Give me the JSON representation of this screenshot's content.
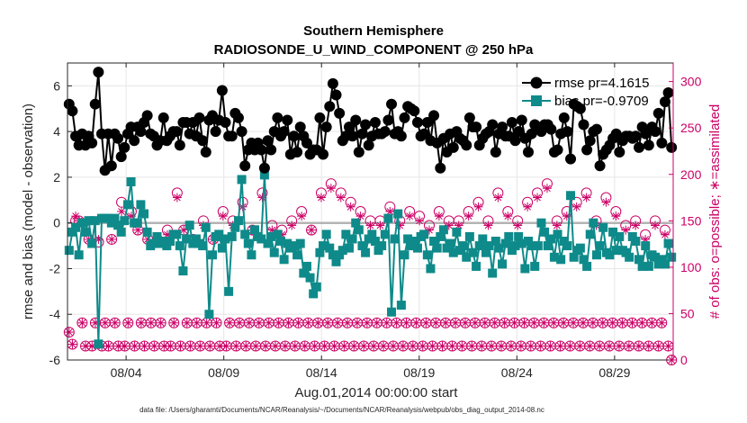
{
  "chart_data": {
    "type": "line",
    "title_line1": "Southern Hemisphere",
    "title_line2": "RADIOSONDE_U_WIND_COMPONENT @ 250 hPa",
    "xlabel": "Aug.01,2014 00:00:00 start",
    "ylabel_left": "rmse and bias (model - observation)",
    "ylabel_right": "# of obs: o=possible; ∗=assimilated",
    "ylim_left": [
      -6,
      7
    ],
    "ylim_right": [
      0,
      320
    ],
    "xlim_days": [
      1,
      32
    ],
    "x_ticks": [
      {
        "day": 4,
        "label": "08/04"
      },
      {
        "day": 9,
        "label": "08/09"
      },
      {
        "day": 14,
        "label": "08/14"
      },
      {
        "day": 19,
        "label": "08/19"
      },
      {
        "day": 24,
        "label": "08/24"
      },
      {
        "day": 29,
        "label": "08/29"
      }
    ],
    "y_ticks_left": [
      "-6",
      "-4",
      "-2",
      "0",
      "2",
      "4",
      "6"
    ],
    "y_ticks_left_values": [
      -6,
      -4,
      -2,
      0,
      2,
      4,
      6
    ],
    "y_ticks_right": [
      "0",
      "50",
      "100",
      "150",
      "200",
      "250",
      "300"
    ],
    "y_ticks_right_values": [
      0,
      50,
      100,
      150,
      200,
      250,
      300
    ],
    "footnote": "data file: /Users/gharamti/Documents/NCAR/Reanalysis/~/Documents/NCAR/Reanalysis/webpub/obs_diag_output_2014-08.nc",
    "colors": {
      "rmse": "#000000",
      "bias": "#0f8a8a",
      "obs": "#cc0066",
      "zero_line": "#b4b4b4"
    },
    "series": [
      {
        "name": "rmse",
        "legend": "rmse pr=4.1615",
        "values": [
          5.2,
          4.9,
          3.8,
          3.4,
          3.9,
          3.4,
          3.8,
          3.5,
          5.2,
          6.6,
          3.9,
          2.3,
          3.9,
          2.5,
          3.9,
          3.7,
          2.9,
          3.3,
          3.9,
          4.2,
          3.6,
          4.2,
          4.0,
          4.4,
          4.7,
          3.9,
          3.8,
          3.4,
          3.6,
          4.6,
          3.6,
          3.8,
          4.0,
          4.0,
          3.4,
          4.4,
          4.4,
          3.9,
          4.4,
          3.8,
          4.6,
          3.6,
          3.1,
          4.5,
          4.7,
          4.0,
          4.5,
          5.8,
          4.4,
          3.8,
          3.8,
          4.8,
          4.6,
          4.0,
          2.5,
          3.2,
          3.5,
          3.2,
          3.5,
          3.2,
          2.4,
          3.6,
          3.2,
          4.0,
          4.6,
          3.8,
          4.0,
          4.5,
          3.0,
          3.8,
          3.1,
          4.2,
          3.8,
          3.5,
          3.0,
          3.2,
          3.2,
          4.6,
          3.0,
          4.2,
          5.1,
          6.1,
          5.6,
          4.8,
          3.6,
          3.8,
          4.2,
          3.8,
          4.5,
          3.1,
          3.9,
          4.3,
          3.4,
          3.8,
          4.4,
          3.9,
          3.9,
          4.0,
          4.5,
          5.2,
          3.9,
          4.0,
          3.8,
          4.6,
          5.1,
          5.0,
          4.9,
          4.4,
          3.8,
          3.9,
          4.4,
          3.6,
          4.7,
          3.5,
          2.4,
          3.7,
          3.1,
          3.9,
          3.3,
          4.0,
          3.7,
          3.6,
          3.4,
          4.6,
          4.2,
          4.2,
          3.4,
          3.7,
          3.9,
          4.0,
          4.3,
          3.1,
          3.9,
          4.2,
          3.8,
          3.8,
          4.4,
          3.6,
          4.0,
          4.5,
          3.7,
          3.1,
          3.9,
          4.3,
          4.2,
          4.0,
          4.3,
          4.3,
          4.1,
          3.1,
          3.2,
          3.9,
          4.6,
          4.0,
          2.8,
          5.2,
          5.1,
          5.0,
          4.3,
          3.2,
          3.6,
          4.0,
          4.1,
          2.5,
          3.0,
          3.2,
          3.4,
          3.7,
          3.9,
          3.1,
          3.6,
          3.8,
          3.8,
          3.7,
          3.8,
          3.3,
          4.2,
          3.9,
          3.4,
          4.2,
          4.0,
          4.8,
          3.5,
          5.3,
          5.7,
          3.3
        ]
      },
      {
        "name": "bias",
        "legend": "bias pr=-0.9709",
        "values": [
          -1.2,
          -0.4,
          -0.2,
          -1.4,
          0.0,
          -0.4,
          0.1,
          -0.9,
          0.1,
          -5.3,
          0.2,
          0.2,
          0.2,
          0.0,
          0.2,
          -0.1,
          -0.4,
          0.1,
          0.8,
          1.8,
          0.0,
          0.0,
          0.8,
          0.4,
          -0.4,
          -1.0,
          -0.9,
          -0.6,
          -0.9,
          -0.8,
          -1.0,
          -0.8,
          -0.5,
          -0.5,
          -1.0,
          -2.1,
          -0.7,
          -0.1,
          -0.9,
          -0.7,
          -0.9,
          -1.0,
          -0.2,
          -4.0,
          -1.4,
          -0.6,
          -0.5,
          -1.1,
          -0.7,
          -3.0,
          -0.6,
          -0.2,
          0.1,
          1.9,
          -0.5,
          -0.9,
          -1.4,
          -0.3,
          -0.6,
          -0.7,
          2.1,
          -0.9,
          -0.6,
          -1.3,
          -0.5,
          -0.8,
          -1.6,
          -0.9,
          -1.1,
          -1.0,
          -1.4,
          -0.9,
          -2.2,
          -1.9,
          -2.4,
          -3.1,
          -2.8,
          -1.3,
          -1.0,
          -0.5,
          -1.1,
          -1.4,
          -1.7,
          -1.4,
          -1.2,
          -0.5,
          -1.1,
          -0.7,
          0.0,
          -0.3,
          -1.0,
          -1.3,
          -0.7,
          -0.5,
          -0.8,
          -1.2,
          -1.0,
          -0.5,
          0.2,
          -3.9,
          -0.7,
          0.4,
          -3.6,
          -1.4,
          -0.7,
          -1.0,
          -0.8,
          -1.1,
          -0.6,
          -0.5,
          -1.4,
          -2.0,
          -0.8,
          -1.1,
          -0.6,
          -0.3,
          -1.1,
          -0.9,
          -1.3,
          -0.4,
          -1.2,
          -1.0,
          -1.5,
          -0.6,
          -1.3,
          -1.9,
          -1.0,
          -0.7,
          -1.3,
          -1.0,
          -2.2,
          -0.8,
          -1.1,
          -1.8,
          -0.9,
          -0.6,
          -1.2,
          -1.0,
          -0.6,
          -0.9,
          -2.0,
          -0.8,
          -1.0,
          -1.9,
          -1.0,
          0.0,
          -0.4,
          -1.0,
          -0.7,
          -1.5,
          -0.5,
          -1.6,
          -0.8,
          -1.0,
          1.2,
          -1.5,
          -1.2,
          -1.1,
          -1.6,
          -1.9,
          -0.5,
          0.0,
          -1.4,
          -1.0,
          -0.2,
          -1.3,
          -1.4,
          -0.4,
          -1.2,
          -0.6,
          -1.2,
          -1.3,
          -1.5,
          -0.6,
          -0.8,
          -1.6,
          -1.9,
          -1.0,
          -1.9,
          -1.4,
          -1.5,
          -1.8,
          -1.6,
          -1.8,
          -0.9,
          -1.5
        ]
      },
      {
        "name": "possible",
        "values": [
          30,
          17,
          150,
          150,
          40,
          15,
          130,
          15,
          40,
          127,
          15,
          40,
          15,
          130,
          40,
          15,
          170,
          15,
          40,
          160,
          15,
          140,
          40,
          15,
          130,
          40,
          15,
          130,
          40,
          15,
          140,
          15,
          40,
          180,
          15,
          140,
          40,
          15,
          130,
          40,
          15,
          150,
          40,
          15,
          130,
          40,
          15,
          160,
          15,
          40,
          150,
          15,
          40,
          170,
          15,
          40,
          140,
          15,
          40,
          180,
          15,
          40,
          145,
          15,
          40,
          140,
          15,
          40,
          150,
          15,
          40,
          160,
          15,
          40,
          140,
          15,
          40,
          180,
          15,
          40,
          190,
          15,
          40,
          180,
          15,
          40,
          170,
          15,
          40,
          160,
          15,
          40,
          150,
          15,
          40,
          150,
          15,
          40,
          165,
          15,
          40,
          150,
          15,
          40,
          160,
          15,
          40,
          155,
          15,
          40,
          145,
          15,
          40,
          160,
          15,
          40,
          150,
          15,
          40,
          150,
          15,
          40,
          160,
          15,
          40,
          170,
          15,
          40,
          150,
          15,
          40,
          180,
          15,
          40,
          160,
          15,
          40,
          150,
          15,
          40,
          170,
          15,
          40,
          180,
          15,
          40,
          190,
          15,
          40,
          150,
          15,
          40,
          160,
          15,
          40,
          170,
          15,
          40,
          180,
          15,
          40,
          150,
          15,
          40,
          175,
          15,
          40,
          160,
          15,
          40,
          145,
          15,
          40,
          150,
          15,
          40,
          135,
          15,
          40,
          150,
          15,
          40,
          140,
          15,
          0
        ]
      },
      {
        "name": "assimilated",
        "values": [
          30,
          17,
          155,
          150,
          40,
          15,
          130,
          15,
          40,
          130,
          15,
          40,
          15,
          130,
          40,
          15,
          160,
          15,
          40,
          155,
          15,
          140,
          40,
          15,
          130,
          40,
          15,
          130,
          40,
          15,
          135,
          15,
          40,
          175,
          15,
          140,
          40,
          15,
          130,
          40,
          15,
          145,
          40,
          15,
          130,
          40,
          15,
          155,
          15,
          40,
          145,
          15,
          40,
          165,
          15,
          40,
          140,
          15,
          40,
          175,
          15,
          40,
          140,
          15,
          40,
          135,
          15,
          40,
          145,
          15,
          40,
          155,
          15,
          40,
          140,
          15,
          40,
          175,
          15,
          40,
          185,
          15,
          40,
          175,
          15,
          40,
          165,
          15,
          40,
          155,
          15,
          40,
          145,
          15,
          40,
          145,
          15,
          40,
          160,
          15,
          40,
          145,
          15,
          40,
          155,
          15,
          40,
          150,
          15,
          40,
          140,
          15,
          40,
          155,
          15,
          40,
          145,
          15,
          40,
          145,
          15,
          40,
          155,
          15,
          40,
          165,
          15,
          40,
          145,
          15,
          40,
          175,
          15,
          40,
          155,
          15,
          40,
          145,
          15,
          40,
          165,
          15,
          40,
          175,
          15,
          40,
          185,
          15,
          40,
          145,
          15,
          40,
          155,
          15,
          40,
          165,
          15,
          40,
          175,
          15,
          40,
          145,
          15,
          40,
          170,
          15,
          40,
          155,
          15,
          40,
          140,
          15,
          40,
          145,
          15,
          40,
          130,
          15,
          40,
          145,
          15,
          40,
          135,
          15,
          0
        ]
      }
    ]
  }
}
